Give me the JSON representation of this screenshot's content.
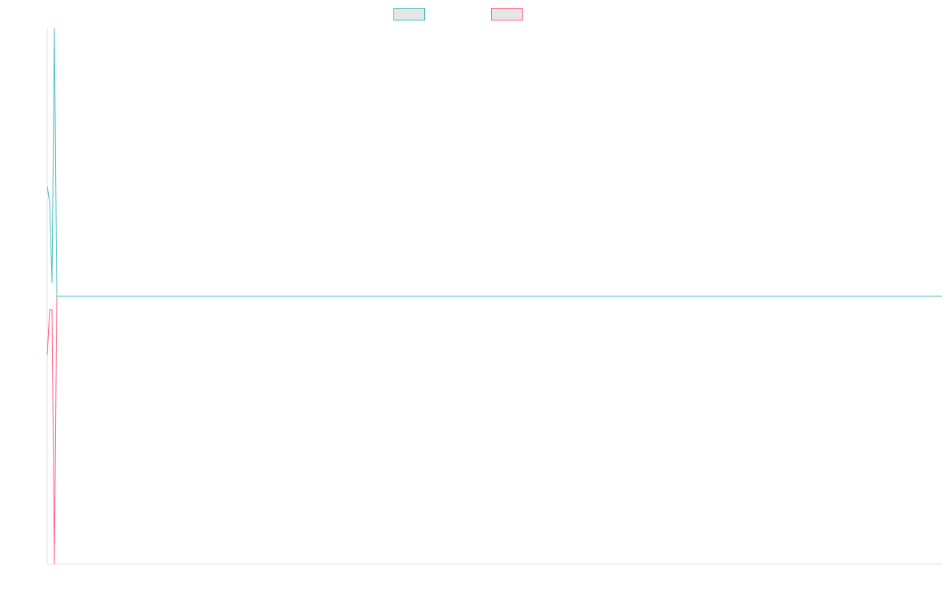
{
  "chart_data": {
    "type": "line",
    "x": [
      0,
      1,
      2,
      3,
      4,
      378
    ],
    "xlim": [
      0,
      378
    ],
    "ylim": [
      -1,
      1
    ],
    "series": [
      {
        "color": "#4bc0c0",
        "values": [
          0.41,
          0.35,
          0.05,
          1.0,
          0,
          0
        ]
      },
      {
        "color": "#ff6384",
        "values": [
          -0.22,
          -0.05,
          -0.05,
          -1.0,
          0,
          0
        ]
      }
    ],
    "legend": "top"
  }
}
